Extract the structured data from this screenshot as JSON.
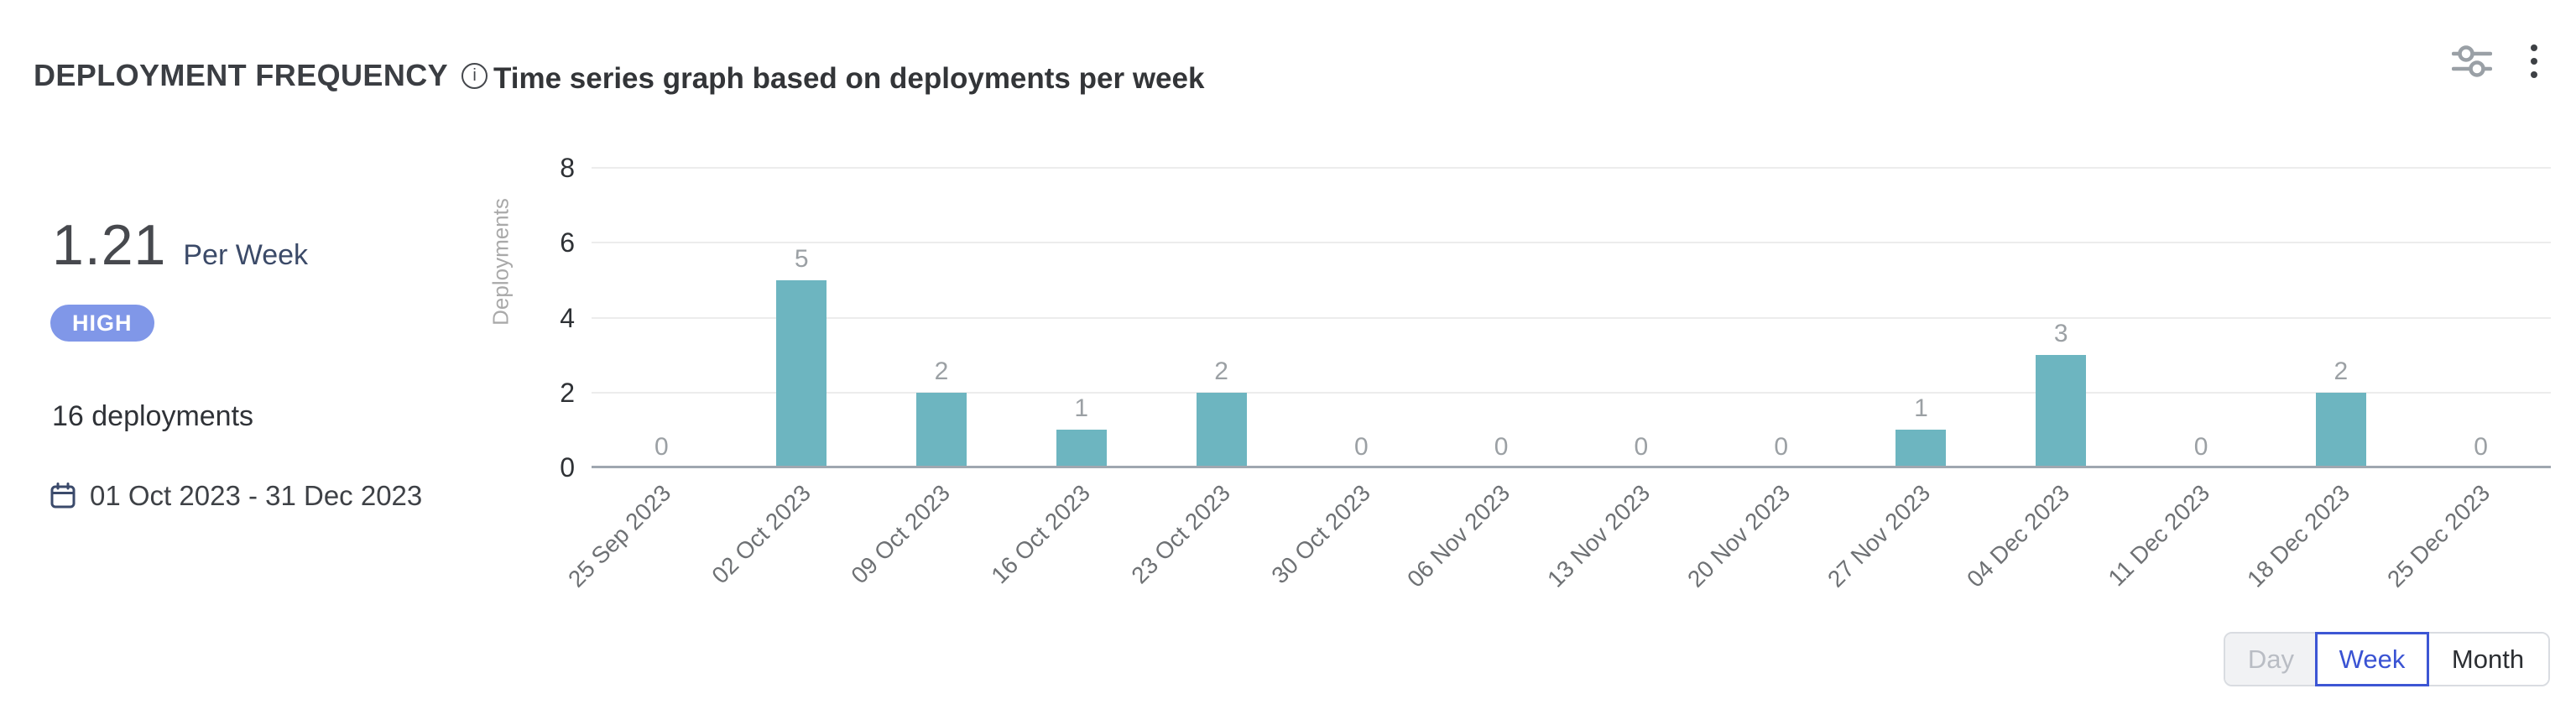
{
  "header": {
    "title": "DEPLOYMENT FREQUENCY",
    "subtitle": "Time series graph based on deployments per week",
    "icons": [
      "info-icon",
      "filter-sliders-icon",
      "kebab-menu-icon"
    ]
  },
  "summary": {
    "rate_value": "1.21",
    "rate_unit": "Per Week",
    "level_badge": "HIGH",
    "total_deployments": "16 deployments",
    "date_range": "01 Oct 2023 - 31 Dec 2023",
    "date_icon": "calendar-icon"
  },
  "toggle": {
    "options": [
      {
        "label": "Day",
        "state": "disabled"
      },
      {
        "label": "Week",
        "state": "selected"
      },
      {
        "label": "Month",
        "state": "default"
      }
    ]
  },
  "colors": {
    "bar": "#6db5c0",
    "badge": "#8097e8",
    "selected_accent": "#3d56d4",
    "gridline": "#ececec",
    "axis_line": "#9fa7b0"
  },
  "chart_data": {
    "type": "bar",
    "title": "Time series graph based on deployments per week",
    "categories": [
      "25 Sep 2023",
      "02 Oct 2023",
      "09 Oct 2023",
      "16 Oct 2023",
      "23 Oct 2023",
      "30 Oct 2023",
      "06 Nov 2023",
      "13 Nov 2023",
      "20 Nov 2023",
      "27 Nov 2023",
      "04 Dec 2023",
      "11 Dec 2023",
      "18 Dec 2023",
      "25 Dec 2023"
    ],
    "values": [
      0,
      5,
      2,
      1,
      2,
      0,
      0,
      0,
      0,
      1,
      3,
      0,
      2,
      0
    ],
    "xlabel": "",
    "ylabel": "Deployments",
    "ylim": [
      0,
      8
    ],
    "yticks": [
      0,
      2,
      4,
      6,
      8
    ],
    "grid": true,
    "legend": false,
    "bar_color": "#6db5c0",
    "value_labels": true,
    "x_tick_rotation": -45
  }
}
